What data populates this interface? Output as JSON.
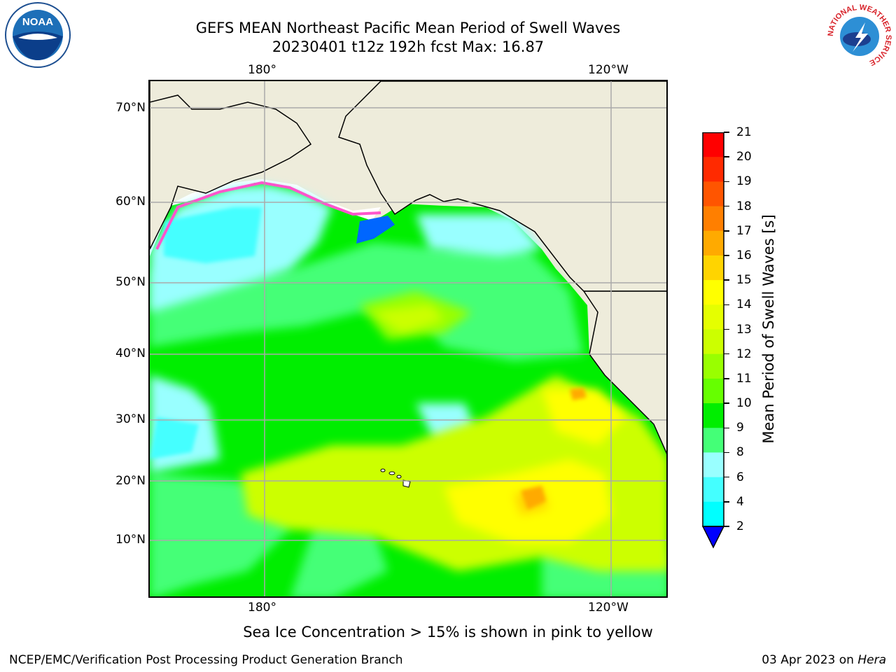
{
  "title": {
    "line1": "GEFS MEAN Northeast Pacific Mean Period of Swell Waves",
    "line2": "20230401 t12z 192h fcst   Max: 16.87"
  },
  "map": {
    "lon_labels_top": [
      "180°",
      "120°W"
    ],
    "lon_labels_bottom": [
      "180°",
      "120°W"
    ],
    "lat_labels": [
      "70°N",
      "60°N",
      "50°N",
      "40°N",
      "30°N",
      "20°N",
      "10°N"
    ]
  },
  "colorbar": {
    "label": "Mean Period of Swell Waves [s]",
    "ticks": [
      "21",
      "20",
      "19",
      "18",
      "17",
      "16",
      "15",
      "14",
      "13",
      "12",
      "11",
      "10",
      "9",
      "8",
      "6",
      "4",
      "2"
    ],
    "colors": [
      "#ff0000",
      "#ff2a00",
      "#ff5500",
      "#ff7f00",
      "#ffaa00",
      "#ffd400",
      "#ffff00",
      "#e5ff00",
      "#ccff00",
      "#99ff00",
      "#66ff00",
      "#00ee00",
      "#44ff77",
      "#99ffff",
      "#44ffff",
      "#00ffff",
      "#00bfff",
      "#0066ff",
      "#0000ff"
    ]
  },
  "footer": {
    "note": "Sea Ice Concentration > 15% is shown in pink to yellow",
    "left": "NCEP/EMC/Verification Post Processing Product Generation Branch",
    "right_date": "03 Apr 2023 on ",
    "right_host": "Hera"
  },
  "logos": {
    "noaa_text": "NOAA",
    "nws_ring_text": "NATIONAL WEATHER SERVICE"
  }
}
